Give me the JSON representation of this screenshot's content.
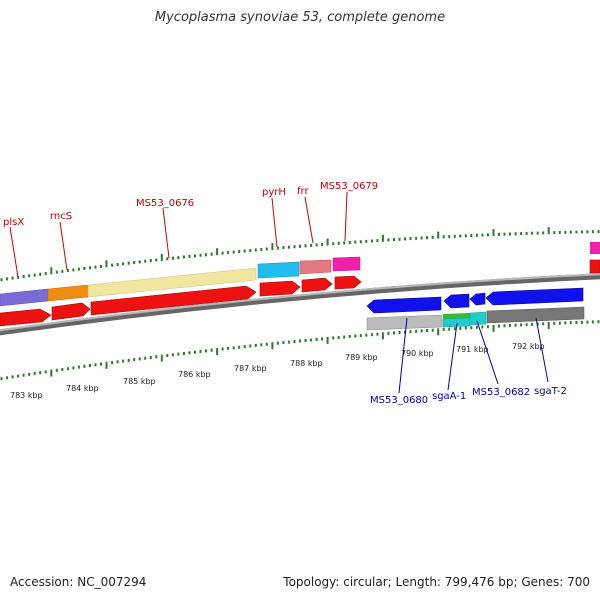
{
  "title": "Mycoplasma synoviae 53, complete genome",
  "footer": {
    "accession": "Accession: NC_007294",
    "topology": "Topology: circular; Length: 799,476 bp; Genes: 700"
  },
  "colors": {
    "forward_label": "#cc0000",
    "reverse_label": "#0000aa",
    "tick": "#2a7a2a",
    "backbone": "#888888"
  },
  "scale_labels": [
    "783 kbp",
    "784 kbp",
    "785 kbp",
    "786 kbp",
    "787 kbp",
    "788 kbp",
    "789 kbp",
    "790 kbp",
    "791 kbp",
    "792 kbp"
  ],
  "forward_genes": [
    "plsX",
    "rncS",
    "MS53_0676",
    "pyrH",
    "frr",
    "MS53_0679"
  ],
  "reverse_genes": [
    "MS53_0680",
    "sgaA-1",
    "MS53_0682",
    "sgaT-2"
  ]
}
